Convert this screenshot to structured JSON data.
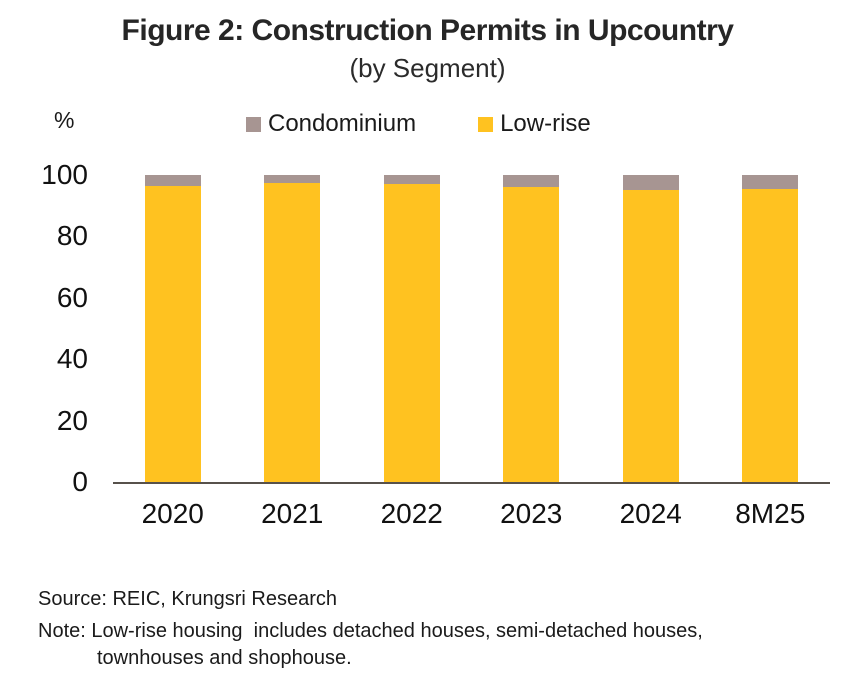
{
  "header": {
    "title": "Figure 2: Construction Permits in Upcountry",
    "subtitle": "(by Segment)",
    "y_unit": "%"
  },
  "legend": {
    "condominium": {
      "label": "Condominium",
      "color": "#a79592"
    },
    "low_rise": {
      "label": "Low-rise",
      "color": "#ffc220"
    }
  },
  "chart_data": {
    "type": "bar",
    "stacked": true,
    "percent_stacked": true,
    "categories": [
      "2020",
      "2021",
      "2022",
      "2023",
      "2024",
      "8M25"
    ],
    "series": [
      {
        "name": "Low-rise",
        "color": "#ffc220",
        "values": [
          96.5,
          97.3,
          97.2,
          96.2,
          95.2,
          95.5
        ]
      },
      {
        "name": "Condominium",
        "color": "#a79592",
        "values": [
          3.5,
          2.7,
          2.8,
          3.8,
          4.8,
          4.5
        ]
      }
    ],
    "title": "Figure 2: Construction Permits in Upcountry",
    "subtitle": "(by Segment)",
    "xlabel": "",
    "ylabel": "%",
    "ylim": [
      0,
      100
    ],
    "yticks": [
      0,
      20,
      40,
      60,
      80,
      100
    ],
    "grid": false,
    "legend_position": "top",
    "axis_line_color": "#57514b"
  },
  "footer": {
    "source": "Source: REIC, Krungsri Research",
    "note_line1": "Note: Low-rise housing  includes detached houses, semi-detached houses,",
    "note_line2": "townhouses and shophouse."
  }
}
